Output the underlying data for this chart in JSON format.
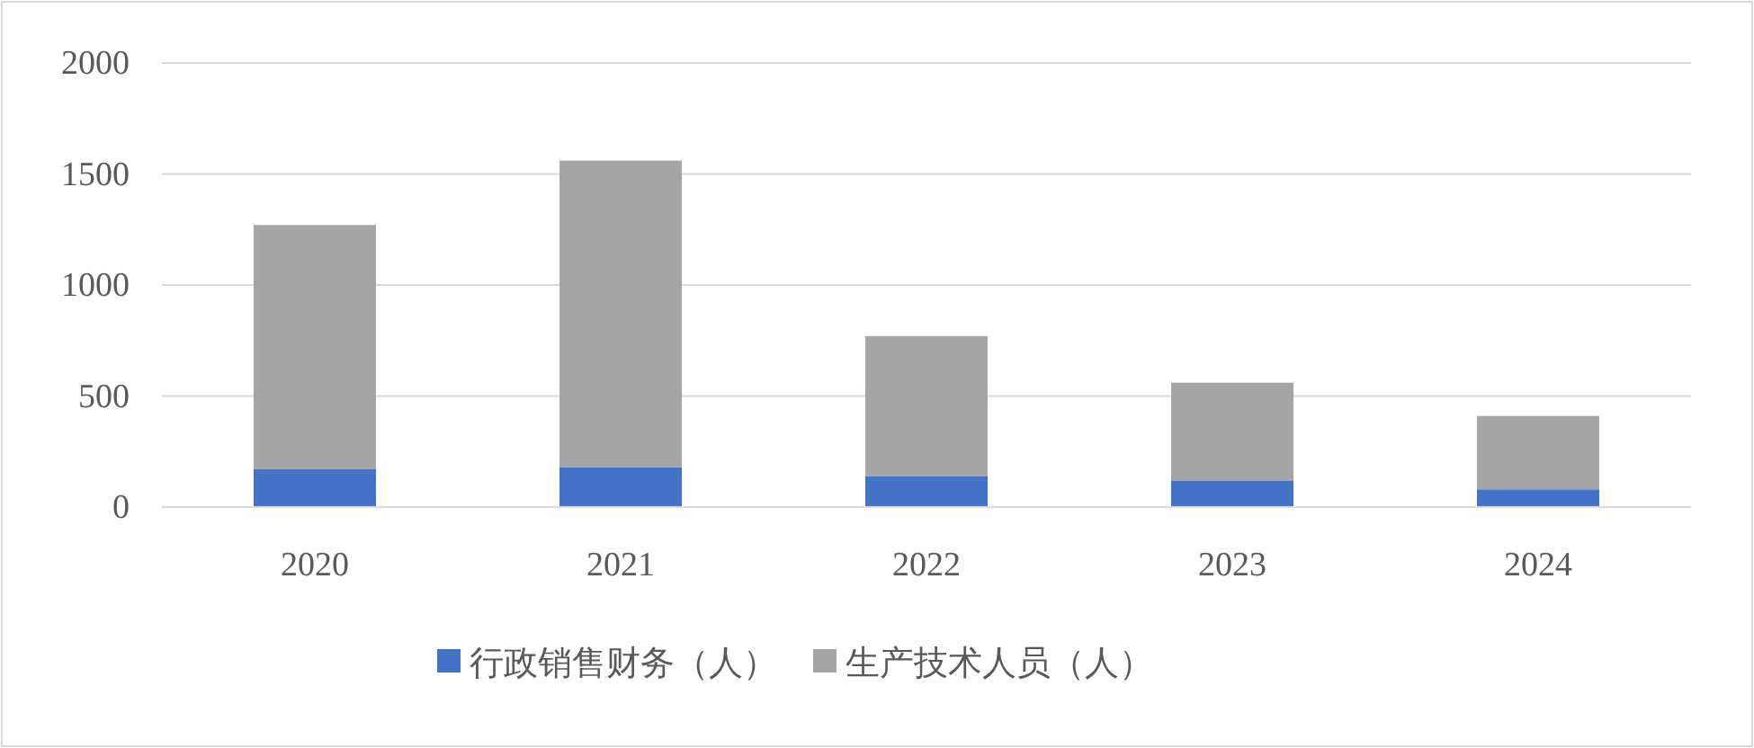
{
  "chart_data": {
    "type": "bar",
    "stacked": true,
    "categories": [
      "2020",
      "2021",
      "2022",
      "2023",
      "2024"
    ],
    "series": [
      {
        "name": "行政销售财务（人）",
        "color": "#4472c4",
        "values": [
          170,
          180,
          140,
          120,
          80
        ]
      },
      {
        "name": "生产技术人员（人）",
        "color": "#a5a5a5",
        "values": [
          1100,
          1380,
          630,
          440,
          330
        ]
      }
    ],
    "ylim": [
      0,
      2000
    ],
    "yticks": [
      0,
      500,
      1000,
      1500,
      2000
    ],
    "grid": "y",
    "legend": "bottom"
  }
}
